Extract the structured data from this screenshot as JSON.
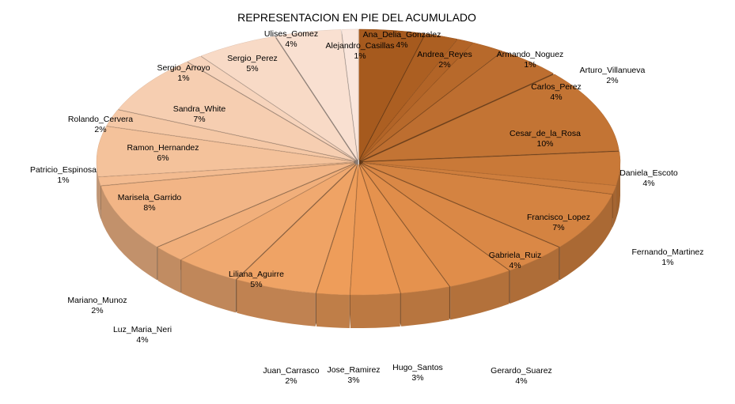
{
  "chart_data": {
    "type": "pie",
    "title": "REPRESENTACION EN PIE DEL ACUMULADO",
    "style": "3d-exploded",
    "categories": [
      "Ana_Delia_Gonzalez",
      "Andrea_Reyes",
      "Armando_Noguez",
      "Arturo_Villanueva",
      "Carlos_Perez",
      "Cesar_de_la_Rosa",
      "Daniela_Escoto",
      "Fernando_Martinez",
      "Francisco_Lopez",
      "Gabriela_Ruiz",
      "Gerardo_Suarez",
      "Hugo_Santos",
      "Jose_Ramirez",
      "Juan_Carrasco",
      "Liliana_Aguirre",
      "Luz_Maria_Neri",
      "Mariano_Munoz",
      "Marisela_Garrido",
      "Patricio_Espinosa",
      "Ramon_Hernandez",
      "Rolando_Cervera",
      "Sandra_White",
      "Sergio_Arroyo",
      "Sergio_Perez",
      "Ulises_Gomez",
      "Alejandro_Casillas"
    ],
    "values": [
      4,
      2,
      1,
      2,
      4,
      10,
      4,
      1,
      7,
      4,
      4,
      3,
      3,
      2,
      5,
      4,
      2,
      8,
      1,
      6,
      2,
      7,
      1,
      5,
      4,
      1
    ],
    "value_labels": [
      "4%",
      "2%",
      "1%",
      "2%",
      "4%",
      "10%",
      "4%",
      "1%",
      "7%",
      "4%",
      "4%",
      "3%",
      "3%",
      "2%",
      "5%",
      "4%",
      "2%",
      "8%",
      "1%",
      "6%",
      "2%",
      "7%",
      "1%",
      "5%",
      "4%",
      "1%"
    ],
    "colors": {
      "start": "#a65a1e",
      "mid": "#ee9a55",
      "end": "#fae6dc"
    }
  }
}
